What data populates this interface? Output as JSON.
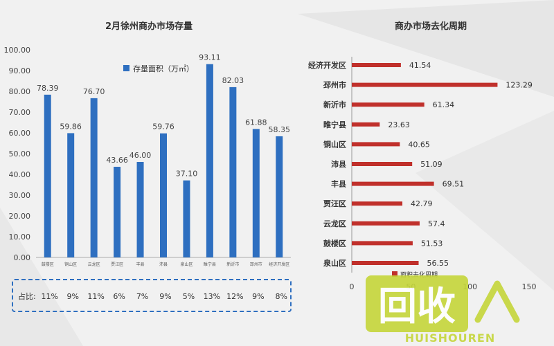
{
  "chart_data": [
    {
      "type": "bar",
      "title": "2月徐州商办市场存量",
      "legend": "存量面积（万㎡）",
      "categories": [
        "鼓楼区",
        "铜山区",
        "云龙区",
        "贾汪区",
        "丰县",
        "沛县",
        "泉山区",
        "睢宁县",
        "新沂市",
        "邳州市",
        "经济开发区"
      ],
      "values": [
        78.39,
        59.86,
        76.7,
        43.66,
        46.0,
        59.76,
        37.1,
        93.11,
        82.03,
        61.88,
        58.35
      ],
      "value_labels": [
        "78.39",
        "59.86",
        "76.70",
        "43.66",
        "46.00",
        "59.76",
        "37.10",
        "93.11",
        "82.03",
        "61.88",
        "58.35"
      ],
      "ylim": [
        0,
        100
      ],
      "yticks": [
        "0.00",
        "10.00",
        "20.00",
        "30.00",
        "40.00",
        "50.00",
        "60.00",
        "70.00",
        "80.00",
        "90.00",
        "100.00"
      ],
      "share_label": "占比:",
      "shares": [
        "11%",
        "9%",
        "11%",
        "6%",
        "7%",
        "9%",
        "5%",
        "13%",
        "12%",
        "9%",
        "8%"
      ],
      "color": "#2e6fc0"
    },
    {
      "type": "bar",
      "orientation": "horizontal",
      "title": "商办市场去化周期",
      "categories": [
        "经济开发区",
        "邳州市",
        "新沂市",
        "睢宁县",
        "铜山区",
        "沛县",
        "丰县",
        "贾汪区",
        "云龙区",
        "鼓楼区",
        "泉山区"
      ],
      "values": [
        41.54,
        123.29,
        61.34,
        23.63,
        40.65,
        51.09,
        69.51,
        42.79,
        57.4,
        51.53,
        56.55
      ],
      "value_labels": [
        "41.54",
        "123.29",
        "61.34",
        "23.63",
        "40.65",
        "51.09",
        "69.51",
        "42.79",
        "57.4",
        "51.53",
        "56.55"
      ],
      "xlim": [
        0,
        150
      ],
      "xticks": [
        "0",
        "50",
        "100",
        "150"
      ],
      "legend": "面积去化周期",
      "color": "#c0302b"
    }
  ],
  "watermark": {
    "main": "回收",
    "sub": "HUISHOUREN"
  }
}
